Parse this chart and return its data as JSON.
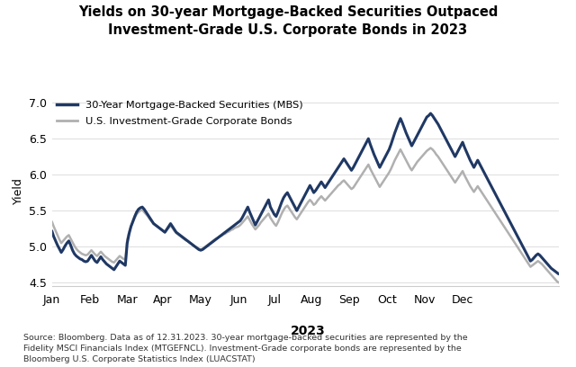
{
  "title": "Yields on 30-year Mortgage-Backed Securities Outpaced\nInvestment-Grade U.S. Corporate Bonds in 2023",
  "xlabel": "2023",
  "ylabel": "Yield",
  "yticks": [
    4.5,
    5.0,
    5.5,
    6.0,
    6.5,
    7.0
  ],
  "ylim": [
    4.45,
    7.1
  ],
  "legend_labels": [
    "30-Year Mortgage-Backed Securities (MBS)",
    "U.S. Investment-Grade Corporate Bonds"
  ],
  "mbs_color": "#1f3864",
  "corp_color": "#b0b0b0",
  "background_color": "#ffffff",
  "footnote": "Source: Bloomberg. Data as of 12.31.2023. 30-year mortgage-backed securities are represented by the\nFidelity MSCI Financials Index (MTGEFNCL). Investment-Grade corporate bonds are represented by the\nBloomberg U.S. Corporate Statistics Index (LUACSTAT)",
  "mbs_data": [
    5.22,
    5.14,
    5.08,
    5.02,
    4.97,
    4.92,
    4.96,
    5.01,
    5.05,
    5.08,
    5.02,
    4.95,
    4.9,
    4.87,
    4.85,
    4.83,
    4.82,
    4.8,
    4.79,
    4.8,
    4.84,
    4.88,
    4.84,
    4.8,
    4.78,
    4.82,
    4.86,
    4.82,
    4.79,
    4.76,
    4.74,
    4.72,
    4.7,
    4.68,
    4.72,
    4.76,
    4.8,
    4.78,
    4.76,
    4.74,
    5.05,
    5.18,
    5.28,
    5.35,
    5.42,
    5.48,
    5.52,
    5.54,
    5.55,
    5.52,
    5.48,
    5.44,
    5.4,
    5.36,
    5.32,
    5.3,
    5.28,
    5.26,
    5.24,
    5.22,
    5.2,
    5.24,
    5.28,
    5.32,
    5.28,
    5.24,
    5.2,
    5.18,
    5.16,
    5.14,
    5.12,
    5.1,
    5.08,
    5.06,
    5.04,
    5.02,
    5.0,
    4.98,
    4.96,
    4.95,
    4.96,
    4.98,
    5.0,
    5.02,
    5.04,
    5.06,
    5.08,
    5.1,
    5.12,
    5.14,
    5.16,
    5.18,
    5.2,
    5.22,
    5.24,
    5.26,
    5.28,
    5.3,
    5.32,
    5.34,
    5.36,
    5.4,
    5.45,
    5.5,
    5.55,
    5.48,
    5.42,
    5.36,
    5.3,
    5.35,
    5.4,
    5.45,
    5.5,
    5.55,
    5.6,
    5.65,
    5.55,
    5.5,
    5.45,
    5.42,
    5.48,
    5.55,
    5.62,
    5.68,
    5.72,
    5.75,
    5.7,
    5.65,
    5.6,
    5.55,
    5.5,
    5.55,
    5.6,
    5.65,
    5.7,
    5.75,
    5.8,
    5.85,
    5.8,
    5.75,
    5.78,
    5.82,
    5.86,
    5.9,
    5.86,
    5.82,
    5.86,
    5.9,
    5.94,
    5.98,
    6.02,
    6.06,
    6.1,
    6.14,
    6.18,
    6.22,
    6.18,
    6.14,
    6.1,
    6.06,
    6.1,
    6.15,
    6.2,
    6.25,
    6.3,
    6.35,
    6.4,
    6.45,
    6.5,
    6.42,
    6.35,
    6.28,
    6.22,
    6.16,
    6.1,
    6.15,
    6.2,
    6.25,
    6.3,
    6.35,
    6.42,
    6.5,
    6.58,
    6.65,
    6.72,
    6.78,
    6.72,
    6.65,
    6.58,
    6.52,
    6.46,
    6.4,
    6.45,
    6.5,
    6.55,
    6.6,
    6.65,
    6.7,
    6.75,
    6.8,
    6.82,
    6.85,
    6.82,
    6.78,
    6.74,
    6.7,
    6.65,
    6.6,
    6.55,
    6.5,
    6.45,
    6.4,
    6.35,
    6.3,
    6.25,
    6.3,
    6.35,
    6.4,
    6.45,
    6.38,
    6.32,
    6.26,
    6.2,
    6.15,
    6.1,
    6.15,
    6.2,
    6.15,
    6.1,
    6.05,
    6.0,
    5.95,
    5.9,
    5.85,
    5.8,
    5.75,
    5.7,
    5.65,
    5.6,
    5.55,
    5.5,
    5.45,
    5.4,
    5.35,
    5.3,
    5.25,
    5.2,
    5.15,
    5.1,
    5.05,
    5.0,
    4.95,
    4.9,
    4.85,
    4.8,
    4.82,
    4.85,
    4.88,
    4.9,
    4.88,
    4.85,
    4.82,
    4.79,
    4.76,
    4.73,
    4.7,
    4.68,
    4.66,
    4.64,
    4.62
  ],
  "corp_data": [
    5.35,
    5.28,
    5.22,
    5.16,
    5.1,
    5.05,
    5.08,
    5.11,
    5.14,
    5.16,
    5.11,
    5.06,
    5.01,
    4.97,
    4.94,
    4.92,
    4.9,
    4.89,
    4.88,
    4.89,
    4.92,
    4.95,
    4.92,
    4.89,
    4.87,
    4.9,
    4.93,
    4.9,
    4.87,
    4.85,
    4.83,
    4.81,
    4.79,
    4.78,
    4.81,
    4.84,
    4.87,
    4.85,
    4.83,
    4.82,
    5.1,
    5.2,
    5.28,
    5.34,
    5.4,
    5.45,
    5.48,
    5.5,
    5.51,
    5.48,
    5.45,
    5.42,
    5.38,
    5.35,
    5.32,
    5.3,
    5.28,
    5.26,
    5.24,
    5.22,
    5.2,
    5.23,
    5.26,
    5.29,
    5.26,
    5.22,
    5.19,
    5.17,
    5.15,
    5.13,
    5.11,
    5.09,
    5.08,
    5.06,
    5.04,
    5.02,
    5.0,
    4.99,
    4.97,
    4.96,
    4.97,
    4.99,
    5.01,
    5.03,
    5.05,
    5.07,
    5.09,
    5.11,
    5.12,
    5.14,
    5.15,
    5.17,
    5.18,
    5.2,
    5.21,
    5.23,
    5.24,
    5.26,
    5.27,
    5.28,
    5.3,
    5.33,
    5.36,
    5.39,
    5.42,
    5.37,
    5.32,
    5.28,
    5.24,
    5.27,
    5.3,
    5.34,
    5.37,
    5.4,
    5.43,
    5.46,
    5.4,
    5.36,
    5.32,
    5.29,
    5.34,
    5.4,
    5.46,
    5.51,
    5.55,
    5.57,
    5.53,
    5.49,
    5.45,
    5.41,
    5.38,
    5.42,
    5.46,
    5.5,
    5.54,
    5.58,
    5.62,
    5.65,
    5.62,
    5.58,
    5.6,
    5.64,
    5.67,
    5.7,
    5.67,
    5.64,
    5.67,
    5.7,
    5.73,
    5.76,
    5.79,
    5.82,
    5.85,
    5.87,
    5.9,
    5.92,
    5.89,
    5.86,
    5.83,
    5.8,
    5.82,
    5.86,
    5.9,
    5.94,
    5.98,
    6.02,
    6.06,
    6.1,
    6.14,
    6.08,
    6.03,
    5.98,
    5.93,
    5.88,
    5.83,
    5.87,
    5.91,
    5.95,
    5.99,
    6.03,
    6.08,
    6.14,
    6.2,
    6.25,
    6.3,
    6.35,
    6.3,
    6.25,
    6.2,
    6.15,
    6.1,
    6.06,
    6.1,
    6.14,
    6.18,
    6.21,
    6.24,
    6.27,
    6.3,
    6.33,
    6.35,
    6.37,
    6.35,
    6.32,
    6.28,
    6.25,
    6.21,
    6.17,
    6.13,
    6.09,
    6.05,
    6.01,
    5.97,
    5.93,
    5.89,
    5.93,
    5.97,
    6.01,
    6.05,
    5.99,
    5.94,
    5.89,
    5.84,
    5.8,
    5.76,
    5.8,
    5.84,
    5.8,
    5.76,
    5.72,
    5.68,
    5.64,
    5.6,
    5.56,
    5.52,
    5.48,
    5.44,
    5.4,
    5.36,
    5.32,
    5.28,
    5.24,
    5.2,
    5.16,
    5.12,
    5.08,
    5.04,
    5.0,
    4.96,
    4.92,
    4.88,
    4.84,
    4.8,
    4.76,
    4.72,
    4.74,
    4.76,
    4.78,
    4.8,
    4.78,
    4.76,
    4.73,
    4.7,
    4.67,
    4.64,
    4.61,
    4.58,
    4.55,
    4.52,
    4.5
  ],
  "month_ticks": [
    0,
    20,
    40,
    59,
    79,
    99,
    118,
    138,
    158,
    178,
    198,
    218
  ],
  "month_labels": [
    "Jan",
    "Feb",
    "Mar",
    "Apr",
    "May",
    "Jun",
    "Jul",
    "Aug",
    "Sep",
    "Oct",
    "Nov",
    "Dec"
  ],
  "title_fontsize": 10.5,
  "axis_fontsize": 9,
  "footnote_fontsize": 6.8
}
